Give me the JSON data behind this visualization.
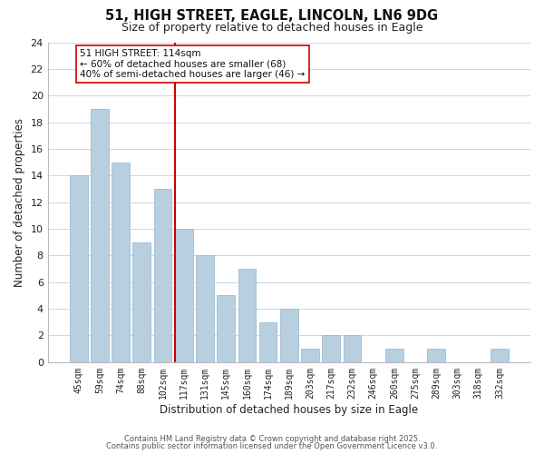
{
  "title": "51, HIGH STREET, EAGLE, LINCOLN, LN6 9DG",
  "subtitle": "Size of property relative to detached houses in Eagle",
  "xlabel": "Distribution of detached houses by size in Eagle",
  "ylabel": "Number of detached properties",
  "bar_color": "#b8cfe0",
  "bar_edge_color": "#a0bdd0",
  "categories": [
    "45sqm",
    "59sqm",
    "74sqm",
    "88sqm",
    "102sqm",
    "117sqm",
    "131sqm",
    "145sqm",
    "160sqm",
    "174sqm",
    "189sqm",
    "203sqm",
    "217sqm",
    "232sqm",
    "246sqm",
    "260sqm",
    "275sqm",
    "289sqm",
    "303sqm",
    "318sqm",
    "332sqm"
  ],
  "values": [
    14,
    19,
    15,
    9,
    13,
    10,
    8,
    5,
    7,
    3,
    4,
    1,
    2,
    2,
    0,
    1,
    0,
    1,
    0,
    0,
    1
  ],
  "vline_index": 5,
  "vline_color": "#cc0000",
  "annotation_title": "51 HIGH STREET: 114sqm",
  "annotation_line1": "← 60% of detached houses are smaller (68)",
  "annotation_line2": "40% of semi-detached houses are larger (46) →",
  "ylim": [
    0,
    24
  ],
  "yticks": [
    0,
    2,
    4,
    6,
    8,
    10,
    12,
    14,
    16,
    18,
    20,
    22,
    24
  ],
  "grid_color": "#c8d8e8",
  "background_color": "#ffffff",
  "footer1": "Contains HM Land Registry data © Crown copyright and database right 2025.",
  "footer2": "Contains public sector information licensed under the Open Government Licence v3.0."
}
